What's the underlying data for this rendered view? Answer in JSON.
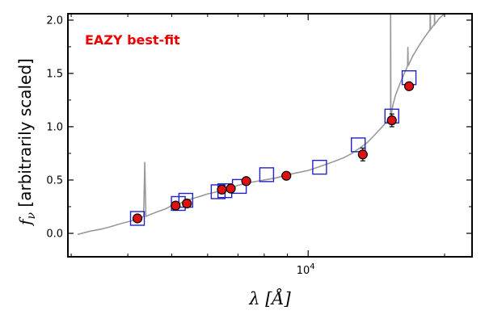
{
  "chart_data": {
    "type": "scatter",
    "title": "",
    "xlabel": "λ [Å]",
    "ylabel": "f_ν [arbitrarily scaled]",
    "xscale": "log",
    "xlim": [
      2950,
      23000
    ],
    "ylim": [
      -0.22,
      2.06
    ],
    "yticks": [
      0.0,
      0.5,
      1.0,
      1.5,
      2.0
    ],
    "ytick_labels": [
      "0.0",
      "0.5",
      "1.0",
      "1.5",
      "2.0"
    ],
    "xtick_label": "10^4",
    "xticks": [
      10000
    ],
    "annotation": "EAZY best-fit",
    "annotation_color": "#ee0000",
    "grid": false,
    "series": [
      {
        "kind": "model-sed-line",
        "color": "#999999",
        "x": [
          3100,
          3300,
          3500,
          3650,
          3850,
          4100,
          4300,
          4500,
          4700,
          4850,
          5000,
          5200,
          5400,
          5600,
          5800,
          6000,
          6300,
          6500,
          6600,
          6800,
          7000,
          7500,
          8000,
          8500,
          9000,
          9500,
          10000,
          10500,
          11000,
          11500,
          12000,
          12500,
          13000,
          13500,
          14000,
          14500,
          15000,
          15200,
          15300,
          15400,
          15600,
          16000,
          16500,
          17000,
          17500,
          18000,
          18500,
          19000,
          19500,
          20000,
          20500,
          21000
        ],
        "y": [
          -0.01,
          0.02,
          0.04,
          0.06,
          0.09,
          0.12,
          0.15,
          0.18,
          0.21,
          0.23,
          0.26,
          0.28,
          0.31,
          0.33,
          0.35,
          0.37,
          0.39,
          0.41,
          0.42,
          0.43,
          0.45,
          0.48,
          0.5,
          0.52,
          0.55,
          0.57,
          0.59,
          0.62,
          0.65,
          0.68,
          0.71,
          0.75,
          0.8,
          0.85,
          0.92,
          0.99,
          1.06,
          1.1,
          1.15,
          1.21,
          1.3,
          1.42,
          1.55,
          1.66,
          1.75,
          1.83,
          1.9,
          1.96,
          2.02,
          2.06,
          2.08,
          2.1
        ],
        "emission_lines": [
          {
            "x": 4360,
            "peak": 0.67
          },
          {
            "x": 15200,
            "peak": 2.2
          },
          {
            "x": 16600,
            "peak": 1.75
          },
          {
            "x": 18600,
            "peak": 2.2
          },
          {
            "x": 19000,
            "peak": 2.2
          }
        ]
      },
      {
        "kind": "model-photometry-squares",
        "marker": "open-square",
        "color": "#2222cc",
        "x": [
          4200,
          5170,
          5370,
          6330,
          6550,
          7050,
          8100,
          10600,
          12900,
          15300,
          16700
        ],
        "y": [
          0.14,
          0.28,
          0.31,
          0.39,
          0.4,
          0.44,
          0.55,
          0.62,
          0.83,
          1.1,
          1.46
        ]
      },
      {
        "kind": "observed-photometry",
        "marker": "filled-circle",
        "color": "#dd1111",
        "edgecolor": "#000000",
        "x": [
          4200,
          5100,
          5400,
          6450,
          6750,
          7300,
          8950,
          13200,
          15300,
          16700
        ],
        "y": [
          0.14,
          0.26,
          0.28,
          0.41,
          0.42,
          0.49,
          0.54,
          0.74,
          1.06,
          1.38
        ],
        "yerr": [
          0.0,
          0.0,
          0.0,
          0.0,
          0.0,
          0.0,
          0.0,
          0.06,
          0.06,
          0.0
        ]
      }
    ]
  }
}
